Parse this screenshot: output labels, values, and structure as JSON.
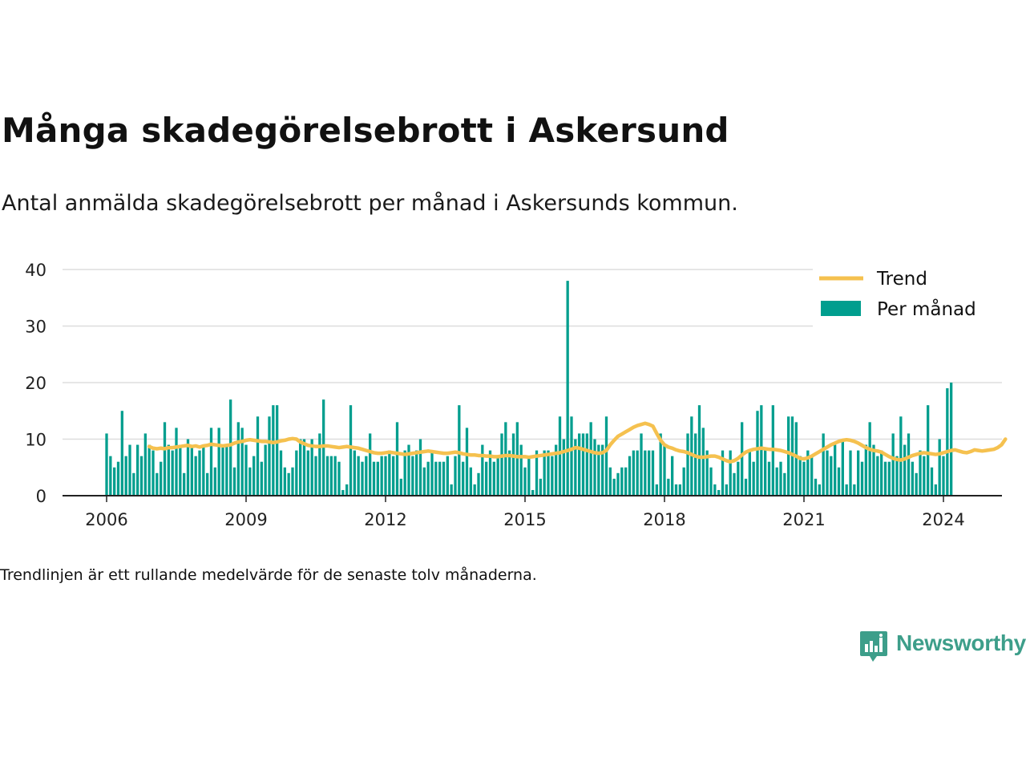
{
  "header": {
    "title": "Många skadegörelsebrott i Askersund",
    "subtitle": "Antal anmälda skadegörelsebrott per månad i Askersunds kommun."
  },
  "footnote": "Trendlinjen är ett rullande medelvärde för de senaste tolv månaderna.",
  "brand": {
    "name": "Newsworthy",
    "icon": "speech-bubble-bar-chart-icon",
    "color": "#3d9e8a"
  },
  "colors": {
    "bars": "#009e8e",
    "trend": "#f5c14f",
    "grid": "#dddddd",
    "axis": "#222222"
  },
  "chart_data": {
    "type": "bar",
    "x_start": "2006-01",
    "x_frequency": "monthly",
    "ylim": [
      0,
      40
    ],
    "yticks": [
      "0",
      "10",
      "20",
      "30",
      "40"
    ],
    "xticks": [
      "2006",
      "2009",
      "2012",
      "2015",
      "2018",
      "2021",
      "2024"
    ],
    "grid": true,
    "legend_placement": "top-right",
    "series": [
      {
        "name": "Per månad",
        "type": "bar",
        "values": [
          11,
          7,
          5,
          6,
          15,
          7,
          9,
          4,
          9,
          7,
          11,
          9,
          8,
          4,
          6,
          13,
          9,
          8,
          12,
          9,
          4,
          10,
          9,
          7,
          8,
          9,
          4,
          12,
          5,
          12,
          9,
          9,
          17,
          5,
          13,
          12,
          9,
          5,
          7,
          14,
          6,
          9,
          14,
          16,
          16,
          8,
          5,
          4,
          5,
          8,
          10,
          10,
          8,
          10,
          7,
          11,
          17,
          7,
          7,
          7,
          6,
          1,
          2,
          16,
          8,
          7,
          6,
          7,
          11,
          6,
          6,
          7,
          7,
          8,
          7,
          13,
          3,
          8,
          9,
          7,
          8,
          10,
          5,
          6,
          8,
          6,
          6,
          6,
          7,
          2,
          7,
          16,
          6,
          12,
          5,
          2,
          4,
          9,
          6,
          8,
          6,
          7,
          11,
          13,
          8,
          11,
          13,
          9,
          5,
          7,
          1,
          8,
          3,
          8,
          8,
          7,
          9,
          14,
          10,
          38,
          14,
          10,
          11,
          11,
          11,
          13,
          10,
          9,
          9,
          14,
          5,
          3,
          4,
          5,
          5,
          7,
          8,
          8,
          11,
          8,
          8,
          8,
          2,
          11,
          9,
          3,
          7,
          2,
          2,
          5,
          11,
          14,
          11,
          16,
          12,
          8,
          5,
          2,
          1,
          8,
          2,
          8,
          4,
          6,
          13,
          3,
          8,
          6,
          15,
          16,
          8,
          6,
          16,
          5,
          6,
          4,
          14,
          14,
          13,
          7,
          6,
          8,
          7,
          3,
          2,
          11,
          8,
          7,
          9,
          5,
          10,
          2,
          8,
          2,
          8,
          6,
          9,
          13,
          9,
          7,
          8,
          6,
          6,
          11,
          7,
          14,
          9,
          11,
          6,
          4,
          8,
          7,
          16,
          5,
          2,
          10,
          7,
          19,
          20
        ]
      },
      {
        "name": "Trend",
        "type": "line",
        "start": "2006-12",
        "values": [
          8.7,
          8.4,
          8.3,
          8.4,
          8.3,
          8.5,
          8.5,
          8.6,
          8.7,
          8.8,
          8.9,
          8.7,
          8.8,
          8.6,
          8.8,
          8.9,
          9.1,
          9.0,
          8.9,
          8.8,
          8.9,
          9.0,
          9.3,
          9.5,
          9.6,
          9.8,
          9.9,
          9.8,
          9.7,
          9.6,
          9.6,
          9.5,
          9.4,
          9.5,
          9.7,
          9.8,
          10.0,
          10.1,
          10.0,
          9.5,
          9.2,
          8.9,
          8.8,
          8.7,
          8.7,
          8.8,
          8.8,
          8.7,
          8.6,
          8.5,
          8.6,
          8.7,
          8.6,
          8.5,
          8.4,
          8.2,
          8.0,
          7.8,
          7.6,
          7.5,
          7.5,
          7.6,
          7.7,
          7.6,
          7.5,
          7.4,
          7.3,
          7.4,
          7.5,
          7.6,
          7.7,
          7.8,
          7.9,
          7.8,
          7.7,
          7.6,
          7.5,
          7.5,
          7.6,
          7.7,
          7.6,
          7.4,
          7.3,
          7.2,
          7.2,
          7.1,
          7.1,
          7.0,
          7.0,
          6.9,
          6.9,
          7.0,
          7.1,
          7.1,
          7.0,
          6.9,
          6.9,
          6.9,
          6.8,
          6.9,
          7.0,
          7.1,
          7.2,
          7.3,
          7.4,
          7.5,
          7.6,
          7.8,
          8.0,
          8.2,
          8.5,
          8.4,
          8.2,
          8.0,
          7.8,
          7.6,
          7.5,
          7.6,
          8.0,
          9.0,
          9.8,
          10.5,
          10.9,
          11.3,
          11.7,
          12.1,
          12.4,
          12.6,
          12.8,
          12.6,
          12.3,
          11.0,
          9.8,
          9.0,
          8.6,
          8.4,
          8.1,
          7.9,
          7.8,
          7.6,
          7.3,
          7.0,
          6.8,
          6.8,
          6.9,
          7.0,
          7.0,
          6.8,
          6.5,
          6.2,
          6.0,
          6.2,
          6.6,
          7.2,
          7.7,
          8.0,
          8.2,
          8.3,
          8.4,
          8.3,
          8.2,
          8.2,
          8.1,
          8.0,
          7.8,
          7.6,
          7.3,
          7.0,
          6.6,
          6.5,
          6.7,
          7.0,
          7.4,
          7.8,
          8.2,
          8.6,
          9.0,
          9.3,
          9.6,
          9.8,
          9.9,
          9.8,
          9.6,
          9.3,
          8.9,
          8.5,
          8.2,
          8.0,
          7.9,
          7.7,
          7.3,
          6.9,
          6.6,
          6.4,
          6.3,
          6.5,
          6.8,
          7.1,
          7.3,
          7.5,
          7.6,
          7.5,
          7.4,
          7.3,
          7.4,
          7.6,
          7.8,
          8.0,
          8.1,
          7.9,
          7.7,
          7.6,
          7.8,
          8.1,
          8.0,
          7.9,
          8.0,
          8.1,
          8.2,
          8.5,
          9.0,
          10.0
        ]
      }
    ]
  }
}
